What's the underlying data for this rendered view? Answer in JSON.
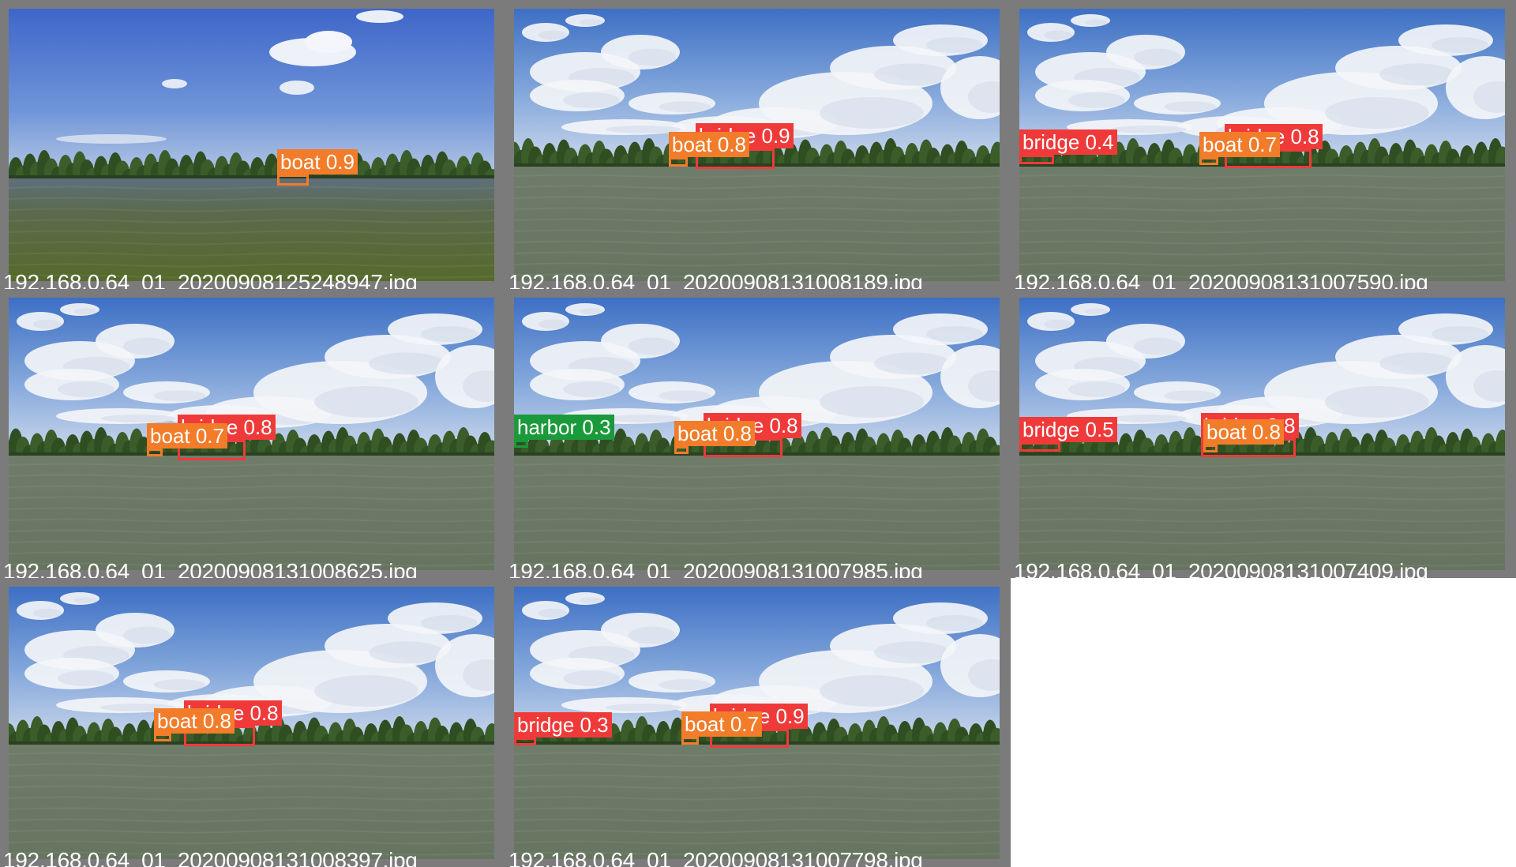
{
  "tiles": [
    {
      "filename": "192.168.0.64_01_20200908125248947.jpg",
      "scene": "a",
      "detections": [
        {
          "label": "boat 0.9",
          "cls": "boat"
        }
      ]
    },
    {
      "filename": "192.168.0.64_01_20200908131008189.jpg",
      "scene": "b",
      "detections": [
        {
          "label": "bridge 0.9",
          "cls": "bridge"
        },
        {
          "label": "boat 0.8",
          "cls": "boat"
        }
      ]
    },
    {
      "filename": "192.168.0.64_01_20200908131007590.jpg",
      "scene": "b",
      "detections": [
        {
          "label": "bridge 0.4",
          "cls": "bridge"
        },
        {
          "label": "bridge 0.8",
          "cls": "bridge"
        },
        {
          "label": "boat 0.7",
          "cls": "boat"
        }
      ]
    },
    {
      "filename": "192.168.0.64_01_20200908131008625.jpg",
      "scene": "b",
      "detections": [
        {
          "label": "bridge 0.8",
          "cls": "bridge"
        },
        {
          "label": "boat 0.7",
          "cls": "boat"
        }
      ]
    },
    {
      "filename": "192.168.0.64_01_20200908131007985.jpg",
      "scene": "b",
      "detections": [
        {
          "label": "harbor 0.3",
          "cls": "harbor"
        },
        {
          "label": "bridge 0.8",
          "cls": "bridge"
        },
        {
          "label": "boat 0.8",
          "cls": "boat"
        }
      ]
    },
    {
      "filename": "192.168.0.64_01_20200908131007409.jpg",
      "scene": "b",
      "detections": [
        {
          "label": "bridge 0.5",
          "cls": "bridge"
        },
        {
          "label": "bridge 0.8",
          "cls": "bridge"
        },
        {
          "label": "boat 0.8",
          "cls": "boat"
        }
      ]
    },
    {
      "filename": "192.168.0.64_01_20200908131008397.jpg",
      "scene": "b",
      "detections": [
        {
          "label": "bridge 0.8",
          "cls": "bridge"
        },
        {
          "label": "boat 0.8",
          "cls": "boat"
        }
      ]
    },
    {
      "filename": "192.168.0.64_01_20200908131007798.jpg",
      "scene": "b",
      "detections": [
        {
          "label": "bridge 0.3",
          "cls": "bridge"
        },
        {
          "label": "bridge 0.9",
          "cls": "bridge"
        },
        {
          "label": "boat 0.7",
          "cls": "boat"
        }
      ]
    }
  ],
  "class_colors": {
    "boat": "#f27c2a",
    "bridge": "#f03a3a",
    "harbor": "#1a9a3a"
  }
}
